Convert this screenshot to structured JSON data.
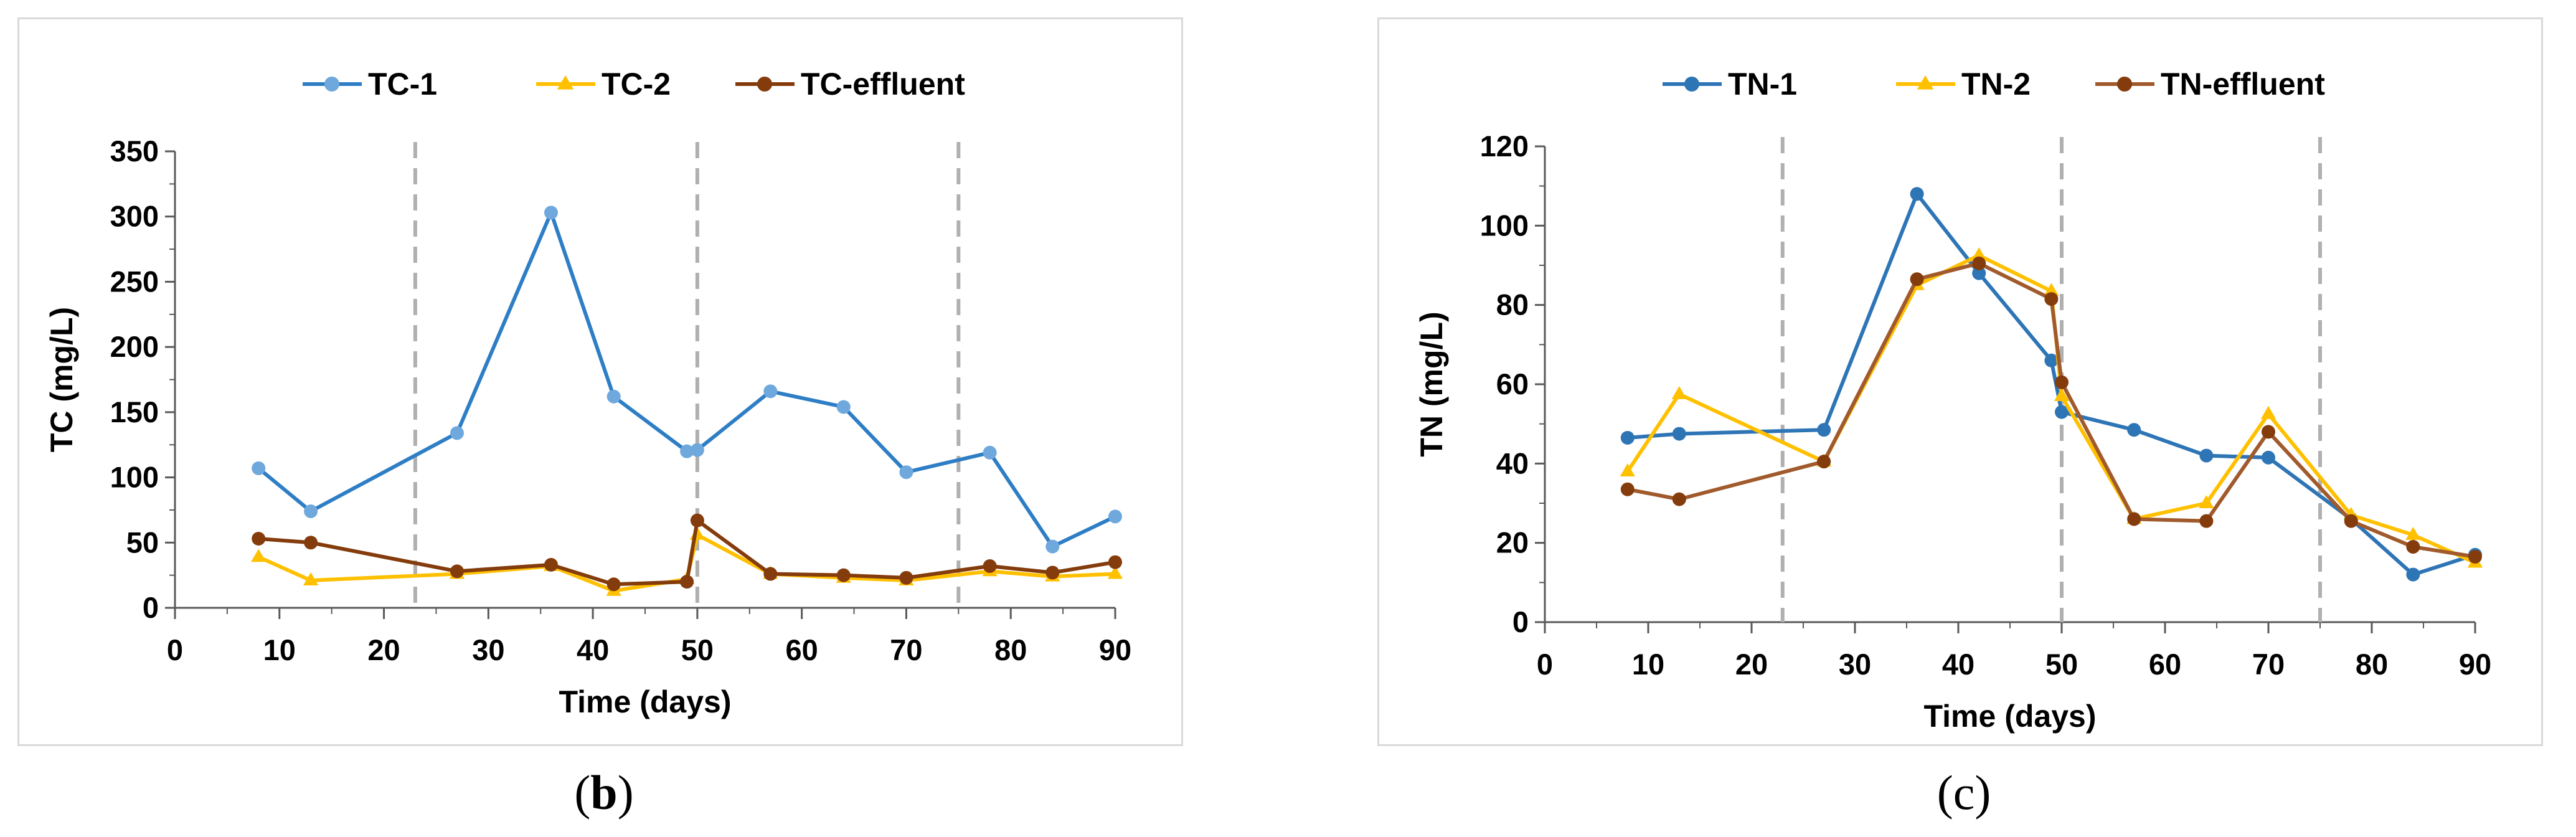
{
  "chart_data": [
    {
      "type": "line",
      "panel": "b",
      "caption": "(b)",
      "caption_letter": "b",
      "xlabel": "Time (days)",
      "ylabel": "TC (mg/L)",
      "xlim": [
        0,
        90
      ],
      "ylim": [
        0,
        350
      ],
      "xticks": [
        0,
        10,
        20,
        30,
        40,
        50,
        60,
        70,
        80,
        90
      ],
      "yticks": [
        0,
        50,
        100,
        150,
        200,
        250,
        300,
        350
      ],
      "vlines": [
        23,
        50,
        75
      ],
      "legend_position": "top",
      "series": [
        {
          "name": "TC-1",
          "color": "#2e7ec6",
          "marker": "circle",
          "marker_color": "#6fa8dc",
          "x": [
            8,
            13,
            27,
            36,
            42,
            49,
            50,
            57,
            64,
            70,
            78,
            84,
            90
          ],
          "y": [
            107,
            74,
            134,
            303,
            162,
            120,
            121,
            166,
            154,
            104,
            119,
            47,
            70
          ]
        },
        {
          "name": "TC-2",
          "color": "#ffc000",
          "marker": "triangle",
          "marker_color": "#ffc000",
          "x": [
            8,
            13,
            27,
            36,
            42,
            49,
            50,
            57,
            64,
            70,
            78,
            84,
            90
          ],
          "y": [
            39,
            21,
            26,
            32,
            13,
            22,
            56,
            26,
            23,
            21,
            28,
            24,
            26
          ]
        },
        {
          "name": "TC-effluent",
          "color": "#843c0c",
          "marker": "circle",
          "marker_color": "#843c0c",
          "x": [
            8,
            13,
            27,
            36,
            42,
            49,
            50,
            57,
            64,
            70,
            78,
            84,
            90
          ],
          "y": [
            53,
            50,
            28,
            33,
            18,
            20,
            67,
            26,
            25,
            23,
            32,
            27,
            35
          ]
        }
      ]
    },
    {
      "type": "line",
      "panel": "c",
      "caption": "(c)",
      "caption_letter": "c",
      "xlabel": "Time (days)",
      "ylabel": "TN (mg/L)",
      "xlim": [
        0,
        90
      ],
      "ylim": [
        0,
        120
      ],
      "xticks": [
        0,
        10,
        20,
        30,
        40,
        50,
        60,
        70,
        80,
        90
      ],
      "yticks": [
        0,
        20,
        40,
        60,
        80,
        100,
        120
      ],
      "vlines": [
        23,
        50,
        75
      ],
      "legend_position": "top",
      "series": [
        {
          "name": "TN-1",
          "color": "#2e75b6",
          "marker": "circle",
          "marker_color": "#2e75b6",
          "x": [
            8,
            13,
            27,
            36,
            42,
            49,
            50,
            57,
            64,
            70,
            78,
            84,
            90
          ],
          "y": [
            46.5,
            47.5,
            48.5,
            108,
            88,
            66,
            53,
            48.5,
            42,
            41.5,
            26,
            12,
            17
          ]
        },
        {
          "name": "TN-2",
          "color": "#ffc000",
          "marker": "triangle",
          "marker_color": "#ffc000",
          "x": [
            8,
            13,
            27,
            36,
            42,
            49,
            50,
            57,
            64,
            70,
            78,
            84,
            90
          ],
          "y": [
            38,
            57.5,
            40.5,
            85,
            92.5,
            83.5,
            57,
            26,
            30,
            52.5,
            27,
            22,
            15
          ]
        },
        {
          "name": "TN-effluent",
          "color": "#a05a2c",
          "marker": "circle",
          "marker_color": "#843c0c",
          "x": [
            8,
            13,
            27,
            36,
            42,
            49,
            50,
            57,
            64,
            70,
            78,
            84,
            90
          ],
          "y": [
            33.5,
            31,
            40.5,
            86.5,
            90.5,
            81.5,
            60.5,
            26,
            25.5,
            48,
            25.5,
            19,
            16.5
          ]
        }
      ]
    }
  ]
}
